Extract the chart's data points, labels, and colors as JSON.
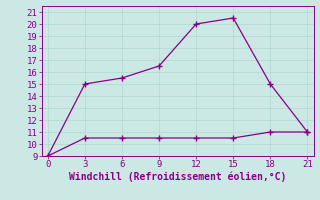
{
  "line1_x": [
    0,
    3,
    6,
    9,
    12,
    15,
    18,
    21
  ],
  "line1_y": [
    9,
    15,
    15.5,
    16.5,
    20,
    20.5,
    15,
    11
  ],
  "line2_x": [
    0,
    3,
    6,
    9,
    12,
    15,
    18,
    21
  ],
  "line2_y": [
    9,
    10.5,
    10.5,
    10.5,
    10.5,
    10.5,
    11,
    11
  ],
  "line_color": "#880088",
  "marker": "+",
  "markersize": 5,
  "markeredgewidth": 1.0,
  "linewidth": 0.9,
  "xlabel": "Windchill (Refroidissement éolien,°C)",
  "xlabel_fontsize": 7,
  "xlim": [
    -0.5,
    21.5
  ],
  "ylim": [
    9,
    21.5
  ],
  "xticks": [
    0,
    3,
    6,
    9,
    12,
    15,
    18,
    21
  ],
  "yticks": [
    9,
    10,
    11,
    12,
    13,
    14,
    15,
    16,
    17,
    18,
    19,
    20,
    21
  ],
  "grid_color": "#b0d8d0",
  "bg_color": "#cce8e4",
  "tick_fontsize": 6.5,
  "spine_color": "#880088"
}
